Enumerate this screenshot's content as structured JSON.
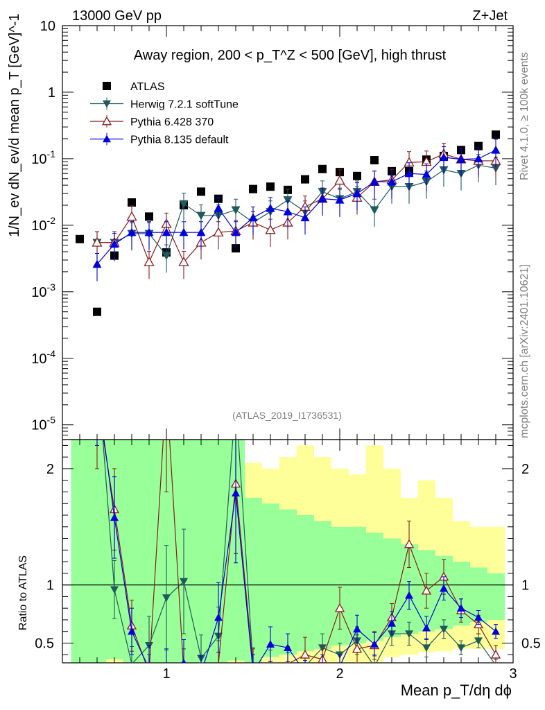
{
  "header": {
    "energy": "13000 GeV pp",
    "process": "Z+Jet",
    "plot_title": "Away region, 200 < p_T^Z < 500 [GeV], high thrust",
    "side_rivet": "Rivet 4.1.0, ≥ 100k events",
    "side_mcplots": "mcplots.cern.ch [arXiv:2401.10621]",
    "analysis_id": "(ATLAS_2019_I1736531)"
  },
  "chart_data": {
    "type": "scatter",
    "main": {
      "ylabel": "1/N_ev dN_ev/d mean p_T [GeV]^-1",
      "yscale": "log",
      "ylim": [
        6e-06,
        10
      ],
      "yticks": [
        {
          "value": 10,
          "label": "10"
        },
        {
          "value": 1,
          "label": "1"
        },
        {
          "value": 0.1,
          "label": "10^-1"
        },
        {
          "value": 0.01,
          "label": "10^-2"
        },
        {
          "value": 0.001,
          "label": "10^-3"
        },
        {
          "value": 0.0001,
          "label": "10^-4"
        },
        {
          "value": 1e-05,
          "label": "10^-5"
        }
      ]
    },
    "ratio": {
      "ylabel": "Ratio to ATLAS",
      "ylim": [
        0.33,
        2.25
      ],
      "yticks": [
        {
          "value": 0.5,
          "label": "0.5"
        },
        {
          "value": 1,
          "label": "1"
        },
        {
          "value": 2,
          "label": "2"
        }
      ]
    },
    "xlabel": "Mean p_T/dη dϕ",
    "xlim": [
      0.4,
      3.0
    ],
    "xticks": [
      {
        "value": 1,
        "label": "1"
      },
      {
        "value": 2,
        "label": "2"
      },
      {
        "value": 3,
        "label": "3"
      }
    ],
    "bands": {
      "edges": [
        0.45,
        0.55,
        0.65,
        0.75,
        0.85,
        0.95,
        1.05,
        1.15,
        1.25,
        1.35,
        1.45,
        1.55,
        1.65,
        1.75,
        1.85,
        1.95,
        2.05,
        2.15,
        2.25,
        2.35,
        2.45,
        2.55,
        2.65,
        2.75,
        2.85,
        2.95
      ],
      "yellow_hi": [
        2.25,
        2.25,
        2.25,
        2.0,
        2.15,
        2.25,
        2.1,
        1.9,
        1.85,
        2.25,
        2.05,
        2.0,
        2.1,
        2.2,
        2.1,
        2.0,
        1.95,
        2.2,
        2.0,
        1.75,
        1.9,
        1.75,
        1.55,
        1.5,
        1.5
      ],
      "yellow_lo": [
        0.33,
        0.33,
        0.33,
        0.33,
        0.33,
        0.33,
        0.33,
        0.33,
        0.33,
        0.33,
        0.33,
        0.33,
        0.33,
        0.33,
        0.33,
        0.33,
        0.33,
        0.33,
        0.38,
        0.4,
        0.42,
        0.43,
        0.45,
        0.45,
        0.45
      ],
      "green_hi": [
        2.25,
        2.25,
        2.25,
        2.25,
        2.25,
        2.25,
        2.25,
        2.25,
        2.25,
        2.25,
        1.75,
        1.7,
        1.65,
        1.6,
        1.55,
        1.5,
        1.5,
        1.45,
        1.4,
        1.35,
        1.3,
        1.25,
        1.2,
        1.15,
        1.1
      ],
      "green_lo": [
        0.33,
        0.33,
        0.36,
        0.33,
        0.33,
        0.33,
        0.33,
        0.33,
        0.33,
        0.35,
        0.33,
        0.38,
        0.4,
        0.43,
        0.45,
        0.48,
        0.5,
        0.52,
        0.55,
        0.58,
        0.6,
        0.62,
        0.65,
        0.68,
        0.7
      ]
    },
    "series": [
      {
        "name": "ATLAS",
        "color": "#000000",
        "marker": "square",
        "x": [
          0.5,
          0.6,
          0.7,
          0.8,
          0.9,
          1.0,
          1.1,
          1.2,
          1.3,
          1.4,
          1.5,
          1.6,
          1.7,
          1.8,
          1.9,
          2.0,
          2.1,
          2.2,
          2.3,
          2.4,
          2.5,
          2.6,
          2.7,
          2.8,
          2.9
        ],
        "y": [
          0.0062,
          0.0005,
          0.0035,
          0.022,
          0.0135,
          0.0039,
          0.02,
          0.032,
          0.025,
          0.0045,
          0.035,
          0.038,
          0.034,
          0.049,
          0.07,
          0.063,
          0.055,
          0.095,
          0.065,
          0.065,
          0.097,
          0.11,
          0.135,
          0.155,
          0.23
        ]
      },
      {
        "name": "Herwig 7.2.1 softTune",
        "color": "#1f5a5c",
        "marker": "triangle-down",
        "x": [
          0.6,
          0.7,
          0.8,
          0.9,
          1.0,
          1.1,
          1.2,
          1.3,
          1.4,
          1.5,
          1.6,
          1.7,
          1.8,
          1.9,
          2.0,
          2.1,
          2.2,
          2.3,
          2.4,
          2.5,
          2.6,
          2.7,
          2.8,
          2.9
        ],
        "y": [
          0.0055,
          0.0055,
          0.0075,
          0.0075,
          0.0035,
          0.021,
          0.014,
          0.014,
          0.017,
          0.011,
          0.016,
          0.024,
          0.016,
          0.032,
          0.025,
          0.032,
          0.017,
          0.038,
          0.038,
          0.045,
          0.068,
          0.06,
          0.08,
          0.072
        ],
        "ratio": [
          2.9,
          0.96,
          0.32,
          0.48,
          0.89,
          1.03,
          0.37,
          0.56,
          2.6,
          0.31,
          0.29,
          0.3,
          0.3,
          0.46,
          0.4,
          0.52,
          0.3,
          0.58,
          0.58,
          0.46,
          0.62,
          0.46,
          0.52,
          0.31
        ],
        "ratio_err": [
          0.5,
          0.25,
          0.15,
          0.25,
          0.45,
          0.45,
          0.2,
          0.25,
          0.8,
          0.15,
          0.15,
          0.12,
          0.1,
          0.12,
          0.1,
          0.12,
          0.1,
          0.1,
          0.1,
          0.08,
          0.08,
          0.06,
          0.06,
          0.05
        ]
      },
      {
        "name": "Pythia 6.428 370",
        "color": "#8b1a1a",
        "marker": "triangle-up-open",
        "x": [
          0.6,
          0.7,
          0.8,
          0.9,
          1.0,
          1.1,
          1.2,
          1.3,
          1.4,
          1.5,
          1.6,
          1.7,
          1.8,
          1.9,
          2.0,
          2.1,
          2.2,
          2.3,
          2.4,
          2.5,
          2.6,
          2.7,
          2.8,
          2.9
        ],
        "y": [
          0.0055,
          0.0055,
          0.0135,
          0.0028,
          0.0105,
          0.0028,
          0.0055,
          0.0078,
          0.0082,
          0.011,
          0.0085,
          0.011,
          0.019,
          0.025,
          0.047,
          0.026,
          0.045,
          0.048,
          0.088,
          0.09,
          0.118,
          0.098,
          0.093,
          0.093
        ],
        "ratio": [
          2.6,
          1.65,
          0.65,
          0.25,
          2.7,
          0.25,
          0.18,
          0.32,
          1.87,
          0.3,
          0.22,
          0.32,
          0.4,
          0.36,
          0.8,
          0.45,
          0.48,
          0.72,
          1.35,
          0.95,
          1.07,
          0.78,
          0.66,
          0.4
        ],
        "ratio_err": [
          0.6,
          0.35,
          0.22,
          0.15,
          0.9,
          0.2,
          0.15,
          0.2,
          0.6,
          0.15,
          0.12,
          0.15,
          0.15,
          0.12,
          0.18,
          0.12,
          0.12,
          0.12,
          0.2,
          0.15,
          0.15,
          0.1,
          0.08,
          0.08
        ]
      },
      {
        "name": "Pythia 8.135 default",
        "color": "#0000dd",
        "marker": "triangle-up",
        "x": [
          0.6,
          0.7,
          0.8,
          0.9,
          1.0,
          1.1,
          1.2,
          1.3,
          1.4,
          1.5,
          1.6,
          1.7,
          1.8,
          1.9,
          2.0,
          2.1,
          2.2,
          2.3,
          2.4,
          2.5,
          2.6,
          2.7,
          2.8,
          2.9
        ],
        "y": [
          0.0026,
          0.0052,
          0.0078,
          0.0078,
          0.0078,
          0.0078,
          0.0078,
          0.018,
          0.0078,
          0.013,
          0.018,
          0.016,
          0.013,
          0.025,
          0.024,
          0.03,
          0.045,
          0.045,
          0.06,
          0.058,
          0.105,
          0.098,
          0.1,
          0.135
        ],
        "ratio": [
          2.7,
          1.58,
          0.6,
          0.28,
          0.25,
          0.33,
          0.24,
          0.72,
          1.79,
          0.25,
          0.49,
          0.46,
          0.25,
          0.3,
          0.3,
          0.62,
          0.49,
          0.67,
          0.91,
          0.63,
          0.97,
          0.8,
          0.72,
          0.6
        ],
        "ratio_err": [
          0.5,
          0.35,
          0.2,
          0.2,
          0.2,
          0.2,
          0.15,
          0.3,
          0.6,
          0.15,
          0.15,
          0.12,
          0.1,
          0.1,
          0.1,
          0.12,
          0.1,
          0.1,
          0.12,
          0.1,
          0.1,
          0.08,
          0.06,
          0.06
        ]
      }
    ],
    "legend_position": "top-left"
  }
}
